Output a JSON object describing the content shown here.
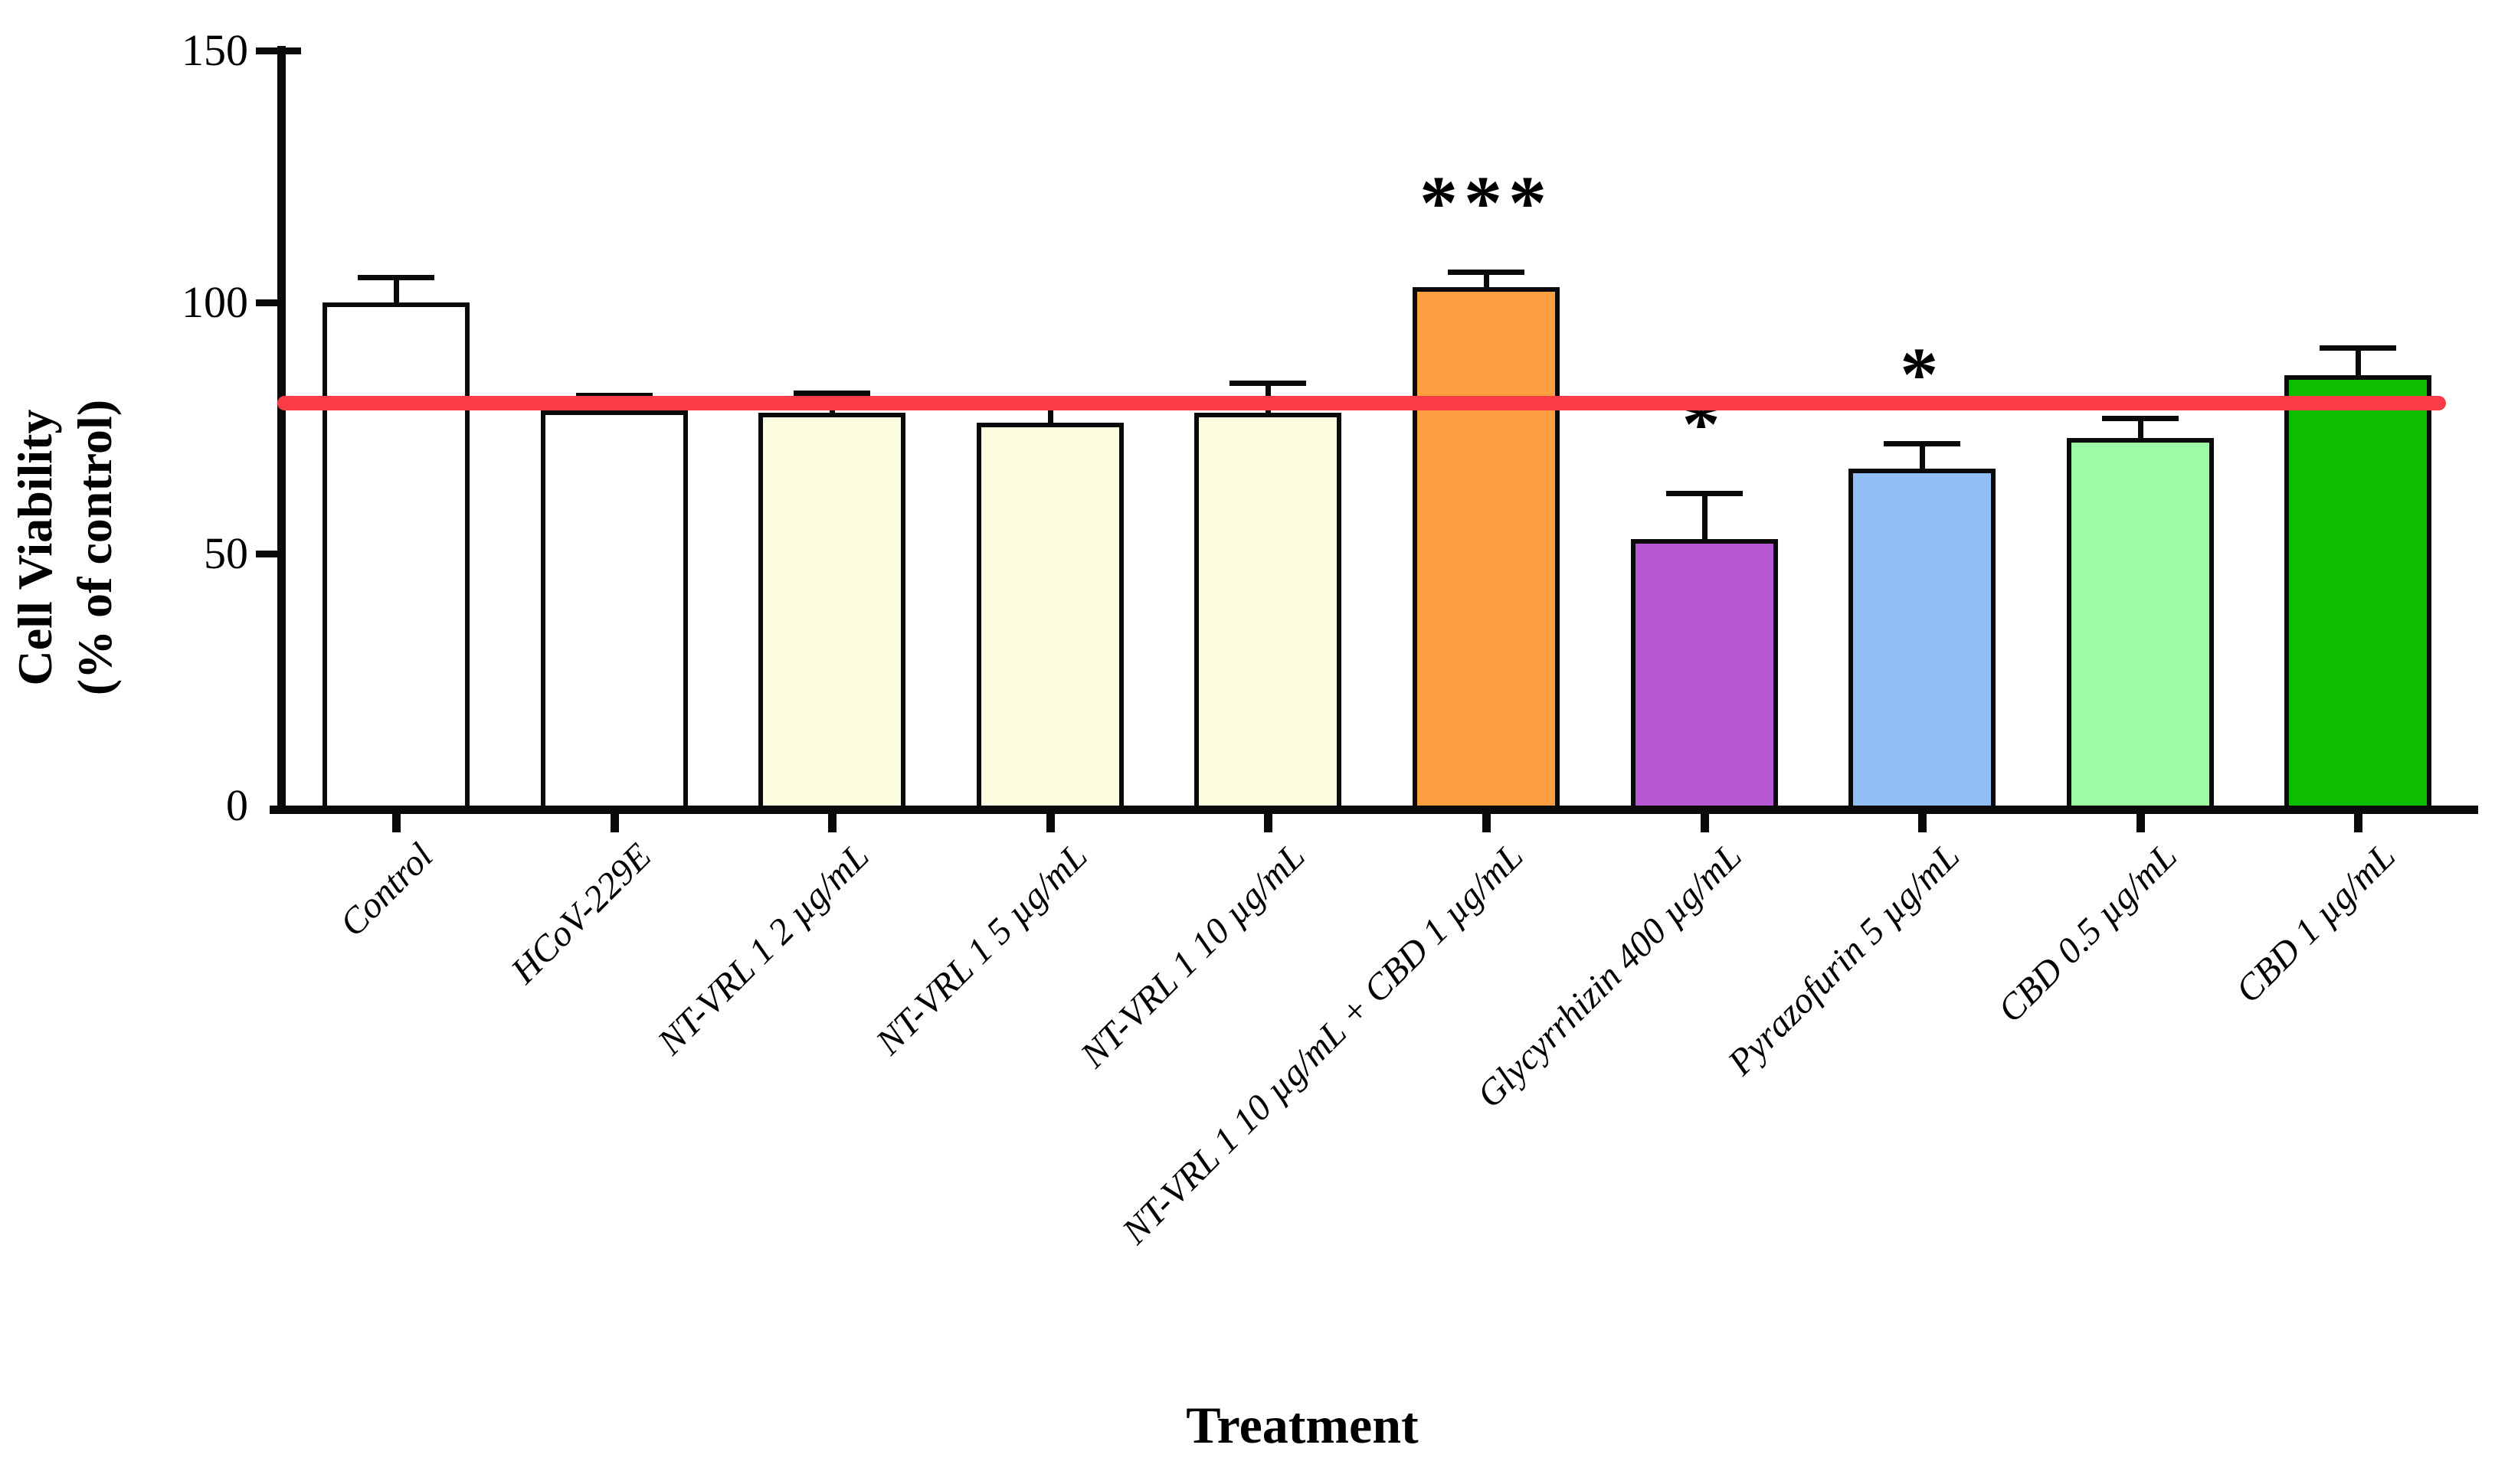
{
  "figure": {
    "y_axis_title_line1": "Cell Viability",
    "y_axis_title_line2": "(% of control)",
    "x_axis_title": "Treatment"
  },
  "chart_data": {
    "type": "bar",
    "title": "",
    "xlabel": "Treatment",
    "ylabel": "Cell Viability (% of control)",
    "ylim": [
      0,
      150
    ],
    "yticks": [
      0,
      50,
      100,
      150
    ],
    "grid": false,
    "legend_position": "none",
    "categories": [
      "Control",
      "HCoV-229E",
      "NT-VRL 1 2 µg/mL",
      "NT-VRL 1 5 µg/mL",
      "NT-VRL 1 10 µg/mL",
      "NT-VRL 1 10 µg/mL + CBD 1 µg/mL",
      "Glycyrrhizin 400 µg/mL",
      "Pyrazofurin 5 µg/mL",
      "CBD 0.5 µg/mL",
      "CBD 1 µg/mL"
    ],
    "values": [
      100,
      78.5,
      78,
      76,
      78,
      103,
      53,
      67,
      73,
      85.5
    ],
    "error_upper": [
      105,
      81.5,
      82,
      80.5,
      84,
      106,
      62,
      72,
      77,
      91
    ],
    "significance": [
      "",
      "",
      "",
      "",
      "",
      "***",
      "*",
      "*",
      "",
      ""
    ],
    "bar_colors": [
      "#FFFFFF",
      "#FFFFFF",
      "#FCFCE0",
      "#FCFCE0",
      "#FCFCE0",
      "#FB9F40",
      "#B858D2",
      "#92BEF8",
      "#9FFAA4",
      "#0DBE00"
    ],
    "bar_outline_color": "#0a0a0a",
    "reference_line": {
      "y": 80,
      "color": "#FA3C46"
    }
  }
}
